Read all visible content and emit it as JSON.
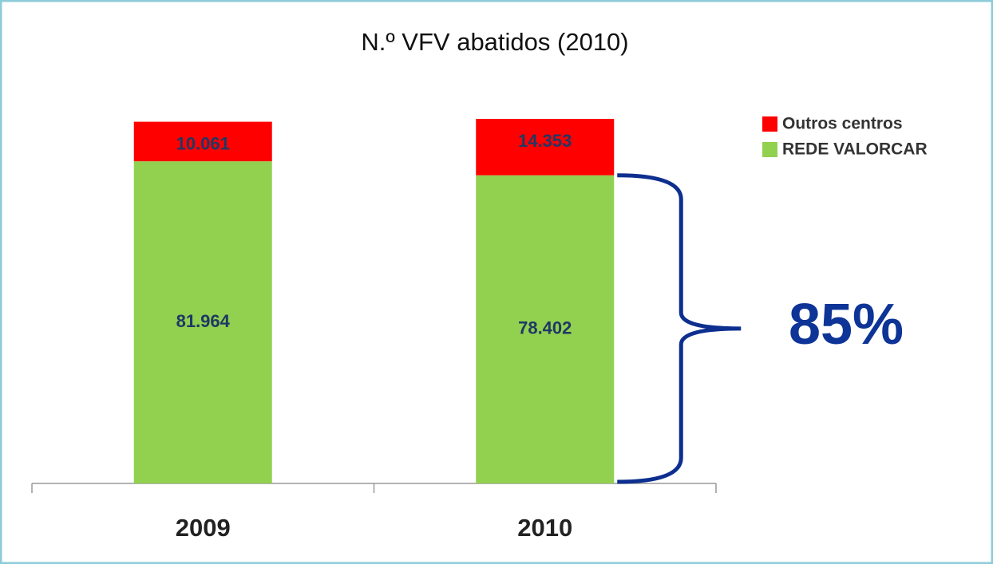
{
  "chart_data": {
    "type": "stacked_bar",
    "title": "N.º VFV abatidos (2010)",
    "categories": [
      "2009",
      "2010"
    ],
    "series": [
      {
        "name": "REDE VALORCAR",
        "color": "#92d050",
        "values": [
          81964,
          78402
        ],
        "value_labels": [
          "81.964",
          "78.402"
        ]
      },
      {
        "name": "Outros centros",
        "color": "#ff0000",
        "values": [
          10061,
          14353
        ],
        "value_labels": [
          "10.061",
          "14.353"
        ]
      }
    ],
    "annotation": "85%",
    "legend": "top-right"
  }
}
